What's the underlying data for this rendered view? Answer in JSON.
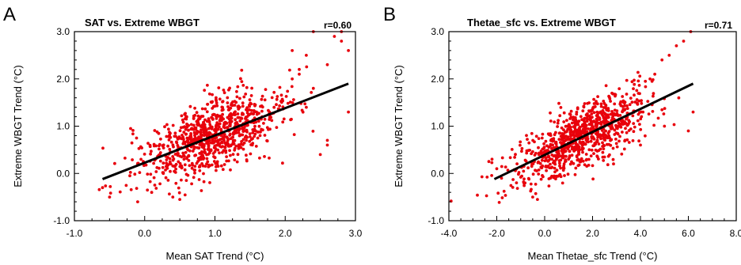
{
  "chart_data": [
    {
      "type": "scatter",
      "panel_label": "A",
      "title": "SAT vs. Extreme WBGT",
      "annotation": "r=0.60",
      "xlabel": "Mean SAT Trend (°C)",
      "ylabel": "Extreme WBGT Trend (°C)",
      "xlim": [
        -1.0,
        3.0
      ],
      "ylim": [
        -1.0,
        3.0
      ],
      "xticks": [
        "-1.0",
        "0.0",
        "1.0",
        "2.0",
        "3.0"
      ],
      "yticks": [
        "-1.0",
        "0.0",
        "1.0",
        "2.0",
        "3.0"
      ],
      "point_color": "#e8000b",
      "line_color": "#000000",
      "fit_line": {
        "x": [
          -0.6,
          2.9
        ],
        "y": [
          -0.12,
          1.9
        ]
      },
      "cloud": {
        "n": 900,
        "x_mean": 0.95,
        "x_sd": 0.5,
        "slope": 0.58,
        "intercept": 0.23,
        "resid_sd": 0.38
      },
      "series": [
        {
          "x": [
            2.7,
            2.8,
            2.9,
            2.6,
            2.4,
            2.3,
            2.2,
            2.1,
            2.2,
            2.4,
            2.6,
            2.5,
            2.3,
            -0.6,
            -0.5,
            -0.2,
            -0.1,
            0.1,
            0.4,
            0.5,
            2.6,
            2.9,
            2.8,
            2.1
          ],
          "y": [
            2.9,
            2.8,
            2.6,
            2.3,
            3.0,
            2.5,
            2.1,
            2.0,
            2.2,
            1.8,
            0.6,
            0.4,
            1.4,
            -0.3,
            -0.5,
            0.95,
            -0.6,
            -0.4,
            -0.5,
            -0.55,
            0.7,
            1.3,
            3.0,
            2.6
          ]
        }
      ]
    },
    {
      "type": "scatter",
      "panel_label": "B",
      "title": "Thetae_sfc vs. Extreme WBGT",
      "annotation": "r=0.71",
      "xlabel": "Mean Thetae_sfc Trend (°C)",
      "ylabel": "Extreme WBGT Trend (°C)",
      "xlim": [
        -4.0,
        8.0
      ],
      "ylim": [
        -1.0,
        3.0
      ],
      "xticks": [
        "-4.0",
        "-2.0",
        "0.0",
        "2.0",
        "4.0",
        "6.0",
        "8.0"
      ],
      "yticks": [
        "-1.0",
        "0.0",
        "1.0",
        "2.0",
        "3.0"
      ],
      "point_color": "#e8000b",
      "line_color": "#000000",
      "fit_line": {
        "x": [
          -2.1,
          6.2
        ],
        "y": [
          -0.12,
          1.9
        ]
      },
      "cloud": {
        "n": 900,
        "x_mean": 1.55,
        "x_sd": 1.4,
        "slope": 0.243,
        "intercept": 0.39,
        "resid_sd": 0.33
      },
      "series": [
        {
          "x": [
            5.8,
            6.1,
            5.5,
            5.2,
            4.9,
            4.6,
            4.4,
            6.2,
            6.0,
            -2.2,
            -2.0,
            -1.8,
            -0.5,
            -0.3,
            5.6,
            5.0,
            4.0
          ],
          "y": [
            2.8,
            3.0,
            2.7,
            2.5,
            2.4,
            2.1,
            2.0,
            1.3,
            0.9,
            0.3,
            0.1,
            -0.1,
            -0.5,
            -0.55,
            1.6,
            1.0,
            0.6
          ]
        }
      ]
    }
  ]
}
